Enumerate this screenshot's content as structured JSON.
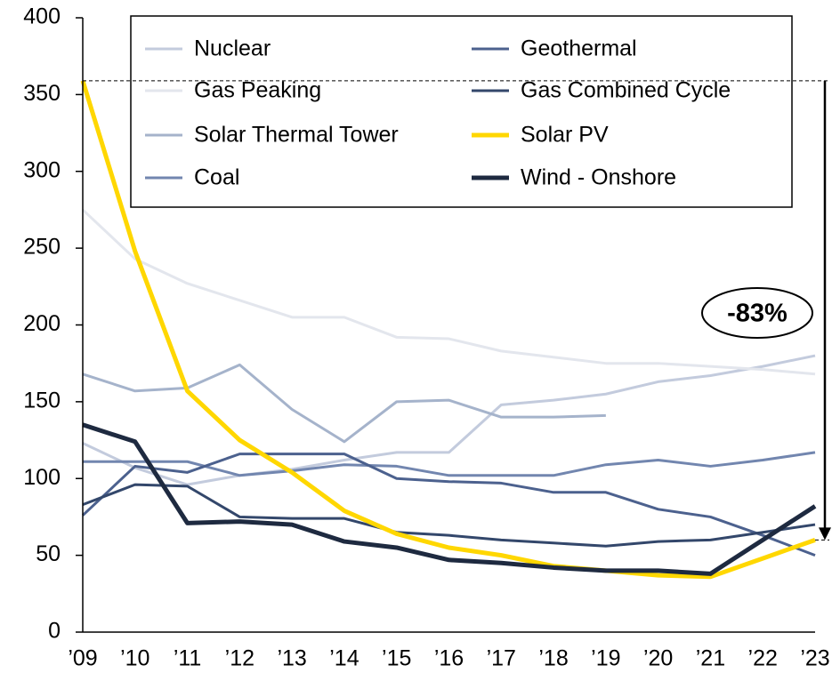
{
  "chart_data": {
    "type": "line",
    "categories": [
      "’09",
      "’10",
      "’11",
      "’12",
      "’13",
      "’14",
      "’15",
      "’16",
      "’17",
      "’18",
      "’19",
      "’20",
      "’21",
      "’22",
      "’23"
    ],
    "series": [
      {
        "name": "Nuclear",
        "color": "#c3cbdd",
        "values": [
          123,
          107,
          96,
          102,
          106,
          112,
          117,
          117,
          148,
          151,
          155,
          163,
          167,
          173,
          180
        ]
      },
      {
        "name": "Gas Peaking",
        "color": "#e3e6ed",
        "values": [
          275,
          243,
          227,
          216,
          205,
          205,
          192,
          191,
          183,
          179,
          175,
          175,
          173,
          171,
          168
        ]
      },
      {
        "name": "Solar Thermal Tower",
        "color": "#a5b3cb",
        "values": [
          168,
          157,
          159,
          174,
          145,
          124,
          150,
          151,
          140,
          140,
          141,
          null,
          null,
          null,
          null
        ]
      },
      {
        "name": "Coal",
        "color": "#7286af",
        "values": [
          111,
          111,
          111,
          102,
          105,
          109,
          108,
          102,
          102,
          102,
          109,
          112,
          108,
          112,
          117
        ]
      },
      {
        "name": "Geothermal",
        "color": "#4c618e",
        "values": [
          76,
          108,
          104,
          116,
          116,
          116,
          100,
          98,
          97,
          91,
          91,
          80,
          75,
          63,
          50
        ]
      },
      {
        "name": "Gas Combined Cycle",
        "color": "#33476b",
        "values": [
          83,
          96,
          95,
          75,
          74,
          74,
          65,
          63,
          60,
          58,
          56,
          59,
          60,
          65,
          70
        ]
      },
      {
        "name": "Solar PV",
        "color": "#ffd700",
        "values": [
          359,
          248,
          157,
          125,
          104,
          79,
          64,
          55,
          50,
          43,
          40,
          37,
          36,
          48,
          60
        ]
      },
      {
        "name": "Wind - Onshore",
        "color": "#1e2a40",
        "values": [
          135,
          124,
          71,
          72,
          70,
          59,
          55,
          47,
          45,
          42,
          40,
          40,
          38,
          60,
          82
        ]
      }
    ],
    "ylim": [
      0,
      400
    ],
    "yticks": [
      0,
      50,
      100,
      150,
      200,
      250,
      300,
      350,
      400
    ],
    "grid": false,
    "legend": "top",
    "annotation": "-83%"
  }
}
